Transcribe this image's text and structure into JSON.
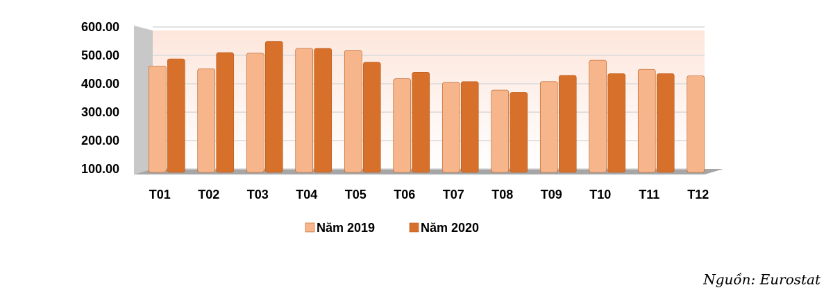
{
  "chart_data": {
    "type": "bar",
    "categories": [
      "T01",
      "T02",
      "T03",
      "T04",
      "T05",
      "T06",
      "T07",
      "T08",
      "T09",
      "T10",
      "T11",
      "T12"
    ],
    "series": [
      {
        "name": "Năm 2019",
        "color": "#f6b58a",
        "values": [
          475,
          465,
          520,
          537,
          530,
          430,
          417,
          390,
          420,
          495,
          463,
          440
        ]
      },
      {
        "name": "Năm 2020",
        "color": "#d6702a",
        "values": [
          500,
          522,
          562,
          537,
          488,
          453,
          420,
          382,
          442,
          448,
          448,
          null
        ]
      }
    ],
    "ylim": [
      100,
      600
    ],
    "yticks": [
      {
        "value": 100,
        "label": "100.00"
      },
      {
        "value": 200,
        "label": "200.00"
      },
      {
        "value": 300,
        "label": "300.00"
      },
      {
        "value": 400,
        "label": "400.00"
      },
      {
        "value": 500,
        "label": "500.00"
      },
      {
        "value": 600,
        "label": "600.00"
      }
    ],
    "grid": true,
    "legend": "bottom",
    "source": "Nguồn: Eurostat"
  }
}
